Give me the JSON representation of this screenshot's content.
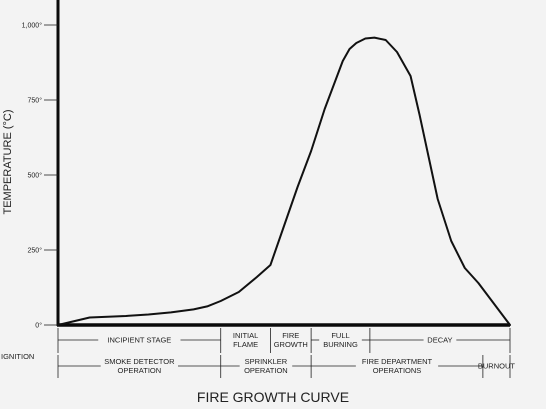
{
  "chart_data": {
    "type": "line",
    "title": "FIRE GROWTH CURVE",
    "ylabel": "TEMPERATURE (°C)",
    "xlabel": "",
    "ylim": [
      0,
      1050
    ],
    "xlim": [
      0,
      100
    ],
    "grid": false,
    "yticks": [
      {
        "value": 0,
        "label": "0°"
      },
      {
        "value": 250,
        "label": "250°"
      },
      {
        "value": 500,
        "label": "500°"
      },
      {
        "value": 750,
        "label": "750°"
      },
      {
        "value": 1000,
        "label": "1,000°"
      }
    ],
    "series": [
      {
        "x": [
          0,
          7,
          15,
          20,
          25,
          30,
          33,
          36,
          40,
          44,
          47,
          50,
          53,
          56,
          59,
          61,
          63,
          64.5,
          66,
          68,
          70,
          72.5,
          75,
          78,
          80,
          82,
          84,
          87,
          90,
          93,
          96,
          100
        ],
        "y": [
          0,
          25,
          30,
          35,
          42,
          52,
          62,
          80,
          110,
          160,
          200,
          330,
          460,
          580,
          720,
          800,
          880,
          920,
          940,
          955,
          958,
          950,
          910,
          830,
          700,
          560,
          420,
          280,
          190,
          140,
          80,
          0
        ]
      }
    ],
    "phase_rows": [
      {
        "row": "stages",
        "segments": [
          {
            "label": "INCIPIENT STAGE",
            "from": 0,
            "to": 36
          },
          {
            "label": "INITIAL\nFLAME",
            "from": 36,
            "to": 47
          },
          {
            "label": "FIRE\nGROWTH",
            "from": 47,
            "to": 56
          },
          {
            "label": "FULL\nBURNING",
            "from": 56,
            "to": 69
          },
          {
            "label": "DECAY",
            "from": 69,
            "to": 100
          }
        ]
      },
      {
        "row": "operations",
        "segments": [
          {
            "label": "SMOKE DETECTOR\nOPERATION",
            "from": 0,
            "to": 36
          },
          {
            "label": "SPRINKLER\nOPERATION",
            "from": 36,
            "to": 56
          },
          {
            "label": "FIRE DEPARTMENT\nOPERATIONS",
            "from": 56,
            "to": 94
          },
          {
            "label": "BURNOUT",
            "from": 94,
            "to": 100
          }
        ]
      }
    ],
    "ignition_label": "IGNITION",
    "line_color": "#111111",
    "axis_color": "#0a0a0a"
  }
}
